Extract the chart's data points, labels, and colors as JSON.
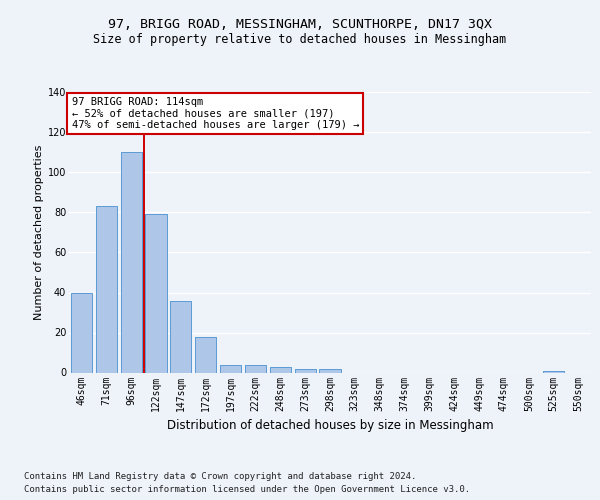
{
  "title1": "97, BRIGG ROAD, MESSINGHAM, SCUNTHORPE, DN17 3QX",
  "title2": "Size of property relative to detached houses in Messingham",
  "xlabel": "Distribution of detached houses by size in Messingham",
  "ylabel": "Number of detached properties",
  "footer1": "Contains HM Land Registry data © Crown copyright and database right 2024.",
  "footer2": "Contains public sector information licensed under the Open Government Licence v3.0.",
  "bar_labels": [
    "46sqm",
    "71sqm",
    "96sqm",
    "122sqm",
    "147sqm",
    "172sqm",
    "197sqm",
    "222sqm",
    "248sqm",
    "273sqm",
    "298sqm",
    "323sqm",
    "348sqm",
    "374sqm",
    "399sqm",
    "424sqm",
    "449sqm",
    "474sqm",
    "500sqm",
    "525sqm",
    "550sqm"
  ],
  "bar_values": [
    40,
    83,
    110,
    79,
    36,
    18,
    4,
    4,
    3,
    2,
    2,
    0,
    0,
    0,
    0,
    0,
    0,
    0,
    0,
    1,
    0
  ],
  "bar_color": "#aec6e8",
  "bar_edge_color": "#5a9ad4",
  "vline_x": 2.5,
  "vline_color": "#cc0000",
  "annotation_text": "97 BRIGG ROAD: 114sqm\n← 52% of detached houses are smaller (197)\n47% of semi-detached houses are larger (179) →",
  "annotation_box_color": "#ffffff",
  "annotation_box_edge": "#cc0000",
  "ylim": [
    0,
    140
  ],
  "yticks": [
    0,
    20,
    40,
    60,
    80,
    100,
    120,
    140
  ],
  "bg_color": "#eef2f9",
  "plot_bg_color": "#eef2f9",
  "grid_color": "#ffffff",
  "title1_fontsize": 9.5,
  "title2_fontsize": 8.5,
  "xlabel_fontsize": 8.5,
  "ylabel_fontsize": 8,
  "tick_fontsize": 7,
  "annot_fontsize": 7.5,
  "footer_fontsize": 6.5
}
